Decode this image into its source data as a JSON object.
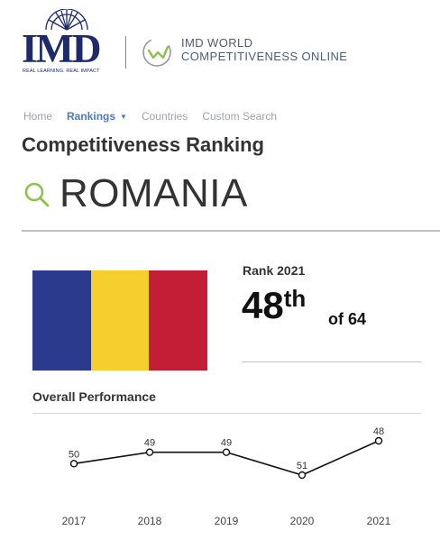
{
  "brand": {
    "logo_text": "IMD",
    "logo_tagline": "REAL LEARNING. REAL IMPACT",
    "product_line1": "IMD WORLD",
    "product_line2": "COMPETITIVENESS ONLINE"
  },
  "nav": {
    "home": "Home",
    "rankings": "Rankings",
    "countries": "Countries",
    "custom_search": "Custom Search"
  },
  "page": {
    "title": "Competitiveness Ranking",
    "country": "ROMANIA"
  },
  "flag_colors": [
    "#2b3a8c",
    "#f5cf2e",
    "#c41e36"
  ],
  "rank": {
    "label": "Rank 2021",
    "number": "48",
    "suffix": "th",
    "of_total": "of 64"
  },
  "performance": {
    "title": "Overall Performance"
  },
  "chart_data": {
    "type": "line",
    "x": [
      "2017",
      "2018",
      "2019",
      "2020",
      "2021"
    ],
    "values": [
      50,
      49,
      49,
      51,
      48
    ],
    "inverted_y": true,
    "color": "#111111"
  }
}
